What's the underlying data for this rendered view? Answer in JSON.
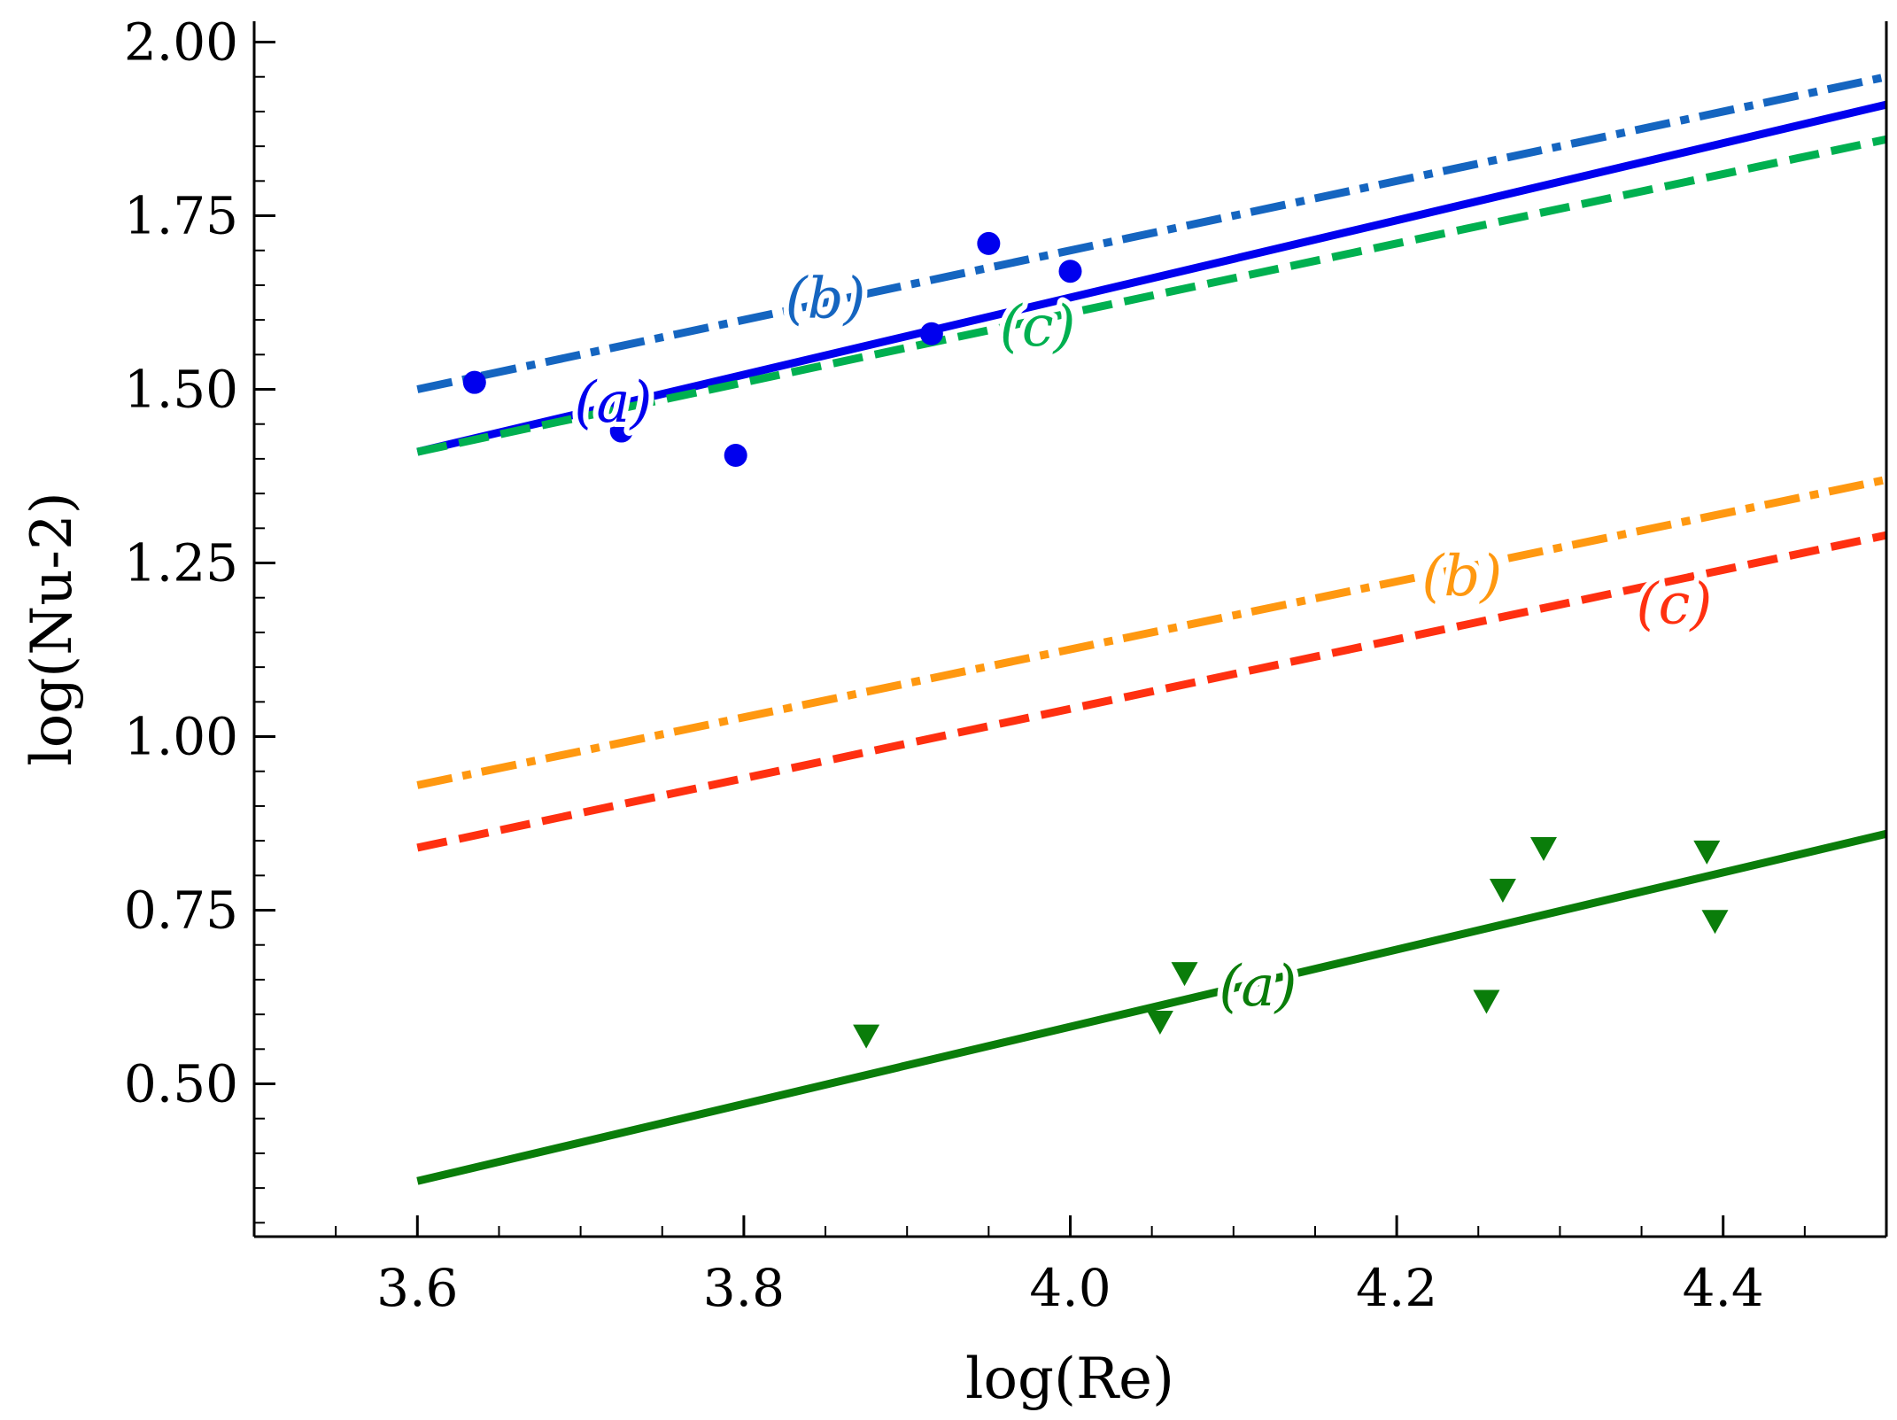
{
  "chart_data": {
    "type": "line",
    "title": "",
    "xlabel": "log(Re)",
    "ylabel": "log(Nu-2)",
    "xlim": [
      3.5,
      4.5
    ],
    "ylim": [
      0.28,
      2.03
    ],
    "grid": false,
    "xticks": [
      3.6,
      3.8,
      4.0,
      4.2,
      4.4
    ],
    "xtick_labels": [
      "3.6",
      "3.8",
      "4.0",
      "4.2",
      "4.4"
    ],
    "yticks": [
      0.5,
      0.75,
      1.0,
      1.25,
      1.5,
      1.75,
      2.0
    ],
    "ytick_labels": [
      "0.50",
      "0.75",
      "1.00",
      "1.25",
      "1.50",
      "1.75",
      "2.00"
    ],
    "series": [
      {
        "name": "(a)",
        "kind": "fit",
        "color": "#0000ee",
        "style": "solid",
        "x": [
          3.6,
          4.5
        ],
        "y": [
          1.41,
          1.91
        ],
        "label_at": [
          3.72,
          1.48
        ]
      },
      {
        "name": "(b)",
        "kind": "fit",
        "color": "#1565c0",
        "style": "dashdot",
        "x": [
          3.6,
          4.5
        ],
        "y": [
          1.5,
          1.95
        ],
        "label_at": [
          3.85,
          1.63
        ]
      },
      {
        "name": "(c)",
        "kind": "fit",
        "color": "#00b050",
        "style": "dashed",
        "x": [
          3.6,
          4.5
        ],
        "y": [
          1.41,
          1.86
        ],
        "label_at": [
          3.98,
          1.59
        ]
      },
      {
        "name": "(b)",
        "kind": "fit",
        "color": "#ff9810",
        "style": "dashdot",
        "x": [
          3.6,
          4.5
        ],
        "y": [
          0.93,
          1.37
        ],
        "label_at": [
          4.24,
          1.23
        ]
      },
      {
        "name": "(c)",
        "kind": "fit",
        "color": "#ff3010",
        "style": "dashed",
        "x": [
          3.6,
          4.5
        ],
        "y": [
          0.84,
          1.29
        ],
        "label_at": [
          4.37,
          1.19
        ]
      },
      {
        "name": "(a)",
        "kind": "fit",
        "color": "#0a7d0a",
        "style": "solid",
        "x": [
          3.6,
          4.5
        ],
        "y": [
          0.36,
          0.86
        ],
        "label_at": [
          4.115,
          0.64
        ]
      },
      {
        "name": "",
        "kind": "points",
        "marker": "circle",
        "color": "#0000ee",
        "x": [
          3.635,
          3.725,
          3.795,
          3.915,
          3.95,
          4.0
        ],
        "y": [
          1.51,
          1.44,
          1.405,
          1.58,
          1.71,
          1.67
        ]
      },
      {
        "name": "",
        "kind": "points",
        "marker": "triangle-down",
        "color": "#0a7d0a",
        "x": [
          3.875,
          4.055,
          4.07,
          4.255,
          4.265,
          4.29,
          4.39,
          4.395
        ],
        "y": [
          0.57,
          0.59,
          0.66,
          0.62,
          0.78,
          0.84,
          0.835,
          0.735
        ]
      }
    ]
  }
}
